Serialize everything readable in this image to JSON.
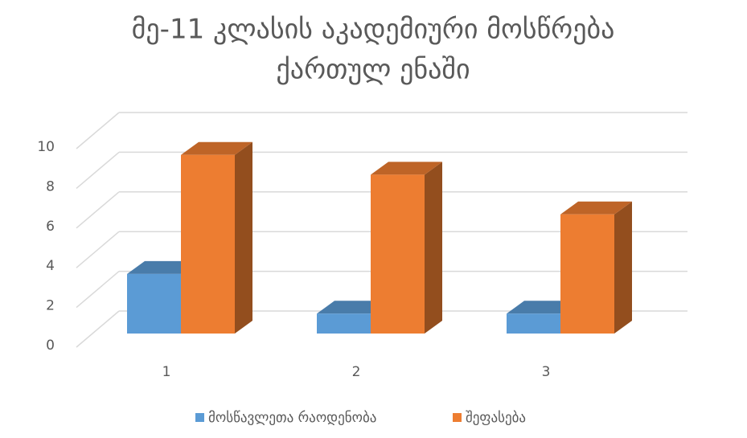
{
  "chart_data": {
    "type": "bar3d",
    "title": [
      "მე-11 კლასის აკადემიური მოსწრება",
      "ქართულ ენაში"
    ],
    "categories": [
      "1",
      "2",
      "3"
    ],
    "series": [
      {
        "name": "მოსწავლეთა რაოდენობა",
        "color": "#5b9bd5",
        "values": [
          3,
          1,
          1
        ]
      },
      {
        "name": "შეფასება",
        "color": "#ed7d31",
        "values": [
          9,
          8,
          6
        ]
      }
    ],
    "ylim": [
      0,
      10
    ],
    "yticks": [
      0,
      2,
      4,
      6,
      8,
      10
    ],
    "grid": true,
    "legend": "bottom"
  }
}
